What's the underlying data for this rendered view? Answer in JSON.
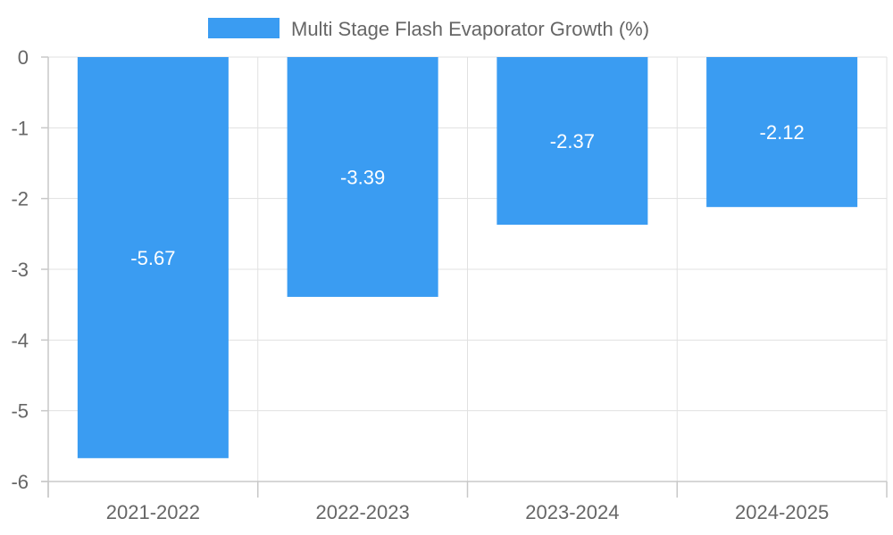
{
  "chart_data": {
    "type": "bar",
    "categories": [
      "2021-2022",
      "2022-2023",
      "2023-2024",
      "2024-2025"
    ],
    "series": [
      {
        "name": "Multi Stage Flash Evaporator Growth (%)",
        "values": [
          -5.67,
          -3.39,
          -2.37,
          -2.12
        ],
        "color": "#3a9cf2"
      }
    ],
    "data_labels": [
      "-5.67",
      "-3.39",
      "-2.37",
      "-2.12"
    ],
    "y_ticks": [
      "0",
      "-1",
      "-2",
      "-3",
      "-4",
      "-5",
      "-6"
    ],
    "ylim": [
      -6,
      0
    ],
    "grid": true,
    "legend_position": "top-center"
  }
}
